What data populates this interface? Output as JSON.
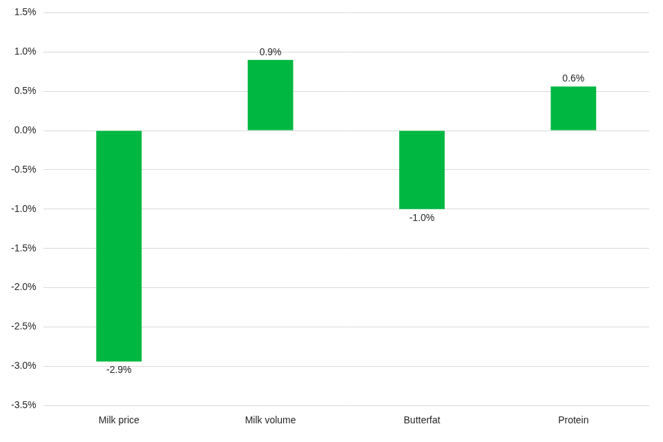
{
  "chart_data": {
    "type": "bar",
    "categories": [
      "Milk price",
      "Milk volume",
      "Butterfat",
      "Protein"
    ],
    "values": [
      -2.94,
      0.9,
      -1.0,
      0.56
    ],
    "value_labels": [
      "-2.9%",
      "0.9%",
      "-1.0%",
      "0.6%"
    ],
    "color": "#00b841",
    "ylim": [
      -3.5,
      1.5
    ],
    "yticks": [
      {
        "value": -3.5,
        "label": "-3.5%"
      },
      {
        "value": -3.0,
        "label": "-3.0%"
      },
      {
        "value": -2.5,
        "label": "-2.5%"
      },
      {
        "value": -2.0,
        "label": "-2.0%"
      },
      {
        "value": -1.5,
        "label": "-1.5%"
      },
      {
        "value": -1.0,
        "label": "-1.0%"
      },
      {
        "value": -0.5,
        "label": "-0.5%"
      },
      {
        "value": 0.0,
        "label": "0.0%"
      },
      {
        "value": 0.5,
        "label": "0.5%"
      },
      {
        "value": 1.0,
        "label": "1.0%"
      },
      {
        "value": 1.5,
        "label": "1.5%"
      }
    ],
    "grid": true,
    "data_labels": true
  }
}
